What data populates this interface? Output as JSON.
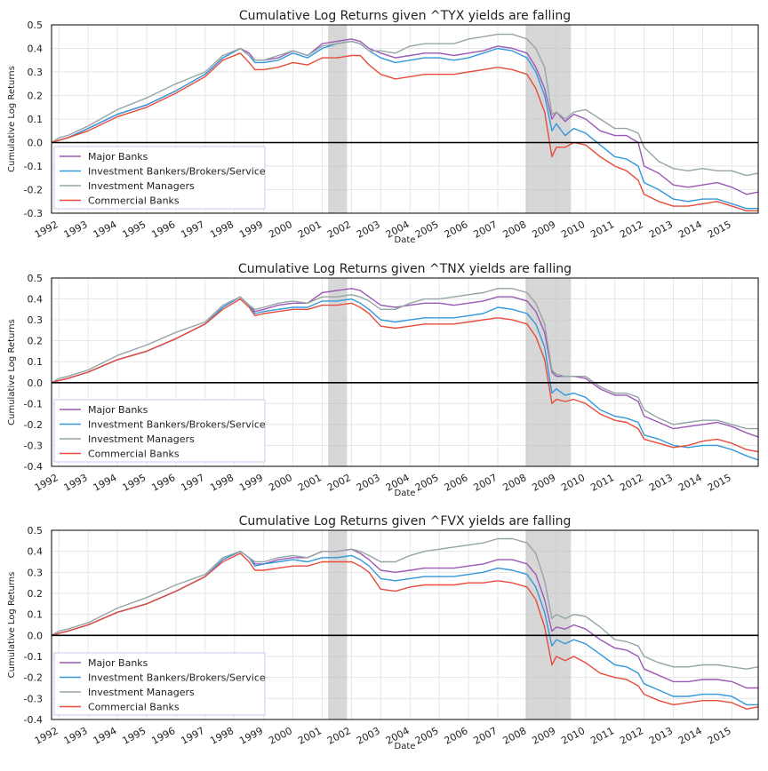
{
  "colors": {
    "major": "#9b59b6",
    "ibbs": "#3498db",
    "im": "#95a5a6",
    "cb": "#e74c3c",
    "recession": "#bdbdbd",
    "zero_line": "#000000",
    "grid": "#e6e6e6",
    "legend_border": "#c8c8f0"
  },
  "chart_data": [
    {
      "type": "line",
      "title": "Cumulative Log Returns given ^TYX yields are falling",
      "xlabel": "Date",
      "ylabel": "Cumulative Log Returns",
      "xlim": [
        1991.75,
        2015.9
      ],
      "ylim": [
        -0.3,
        0.5
      ],
      "yticks": [
        "-0.3",
        "-0.2",
        "-0.1",
        "0.0",
        "0.1",
        "0.2",
        "0.3",
        "0.4",
        "0.5"
      ],
      "xticks": [
        "1992",
        "1993",
        "1994",
        "1995",
        "1996",
        "1997",
        "1998",
        "1999",
        "2000",
        "2001",
        "2002",
        "2003",
        "2004",
        "2005",
        "2006",
        "2007",
        "2008",
        "2009",
        "2010",
        "2011",
        "2012",
        "2013",
        "2014",
        "2015"
      ],
      "grid": true,
      "legend": "lower-left",
      "zero_line": 0,
      "shaded_periods": [
        [
          2001.2,
          2001.85
        ],
        [
          2007.95,
          2009.5
        ]
      ],
      "x": [
        1991.75,
        1992.0,
        1992.3,
        1993.0,
        1994.0,
        1995.0,
        1996.0,
        1997.0,
        1997.6,
        1998.2,
        1998.5,
        1998.7,
        1999.0,
        1999.5,
        2000.0,
        2000.5,
        2001.0,
        2001.5,
        2002.0,
        2002.3,
        2002.6,
        2003.0,
        2003.5,
        2004.0,
        2004.5,
        2005.0,
        2005.5,
        2006.0,
        2006.5,
        2007.0,
        2007.5,
        2008.0,
        2008.3,
        2008.6,
        2008.85,
        2009.0,
        2009.3,
        2009.6,
        2010.0,
        2010.5,
        2011.0,
        2011.4,
        2011.8,
        2012.0,
        2012.5,
        2013.0,
        2013.5,
        2014.0,
        2014.5,
        2015.0,
        2015.5,
        2015.9
      ],
      "series": [
        {
          "name": "Major Banks",
          "color_key": "major",
          "values": [
            0.0,
            0.01,
            0.02,
            0.06,
            0.12,
            0.16,
            0.22,
            0.29,
            0.36,
            0.4,
            0.38,
            0.35,
            0.35,
            0.36,
            0.39,
            0.37,
            0.42,
            0.43,
            0.44,
            0.43,
            0.4,
            0.38,
            0.36,
            0.37,
            0.38,
            0.38,
            0.37,
            0.38,
            0.39,
            0.41,
            0.4,
            0.38,
            0.32,
            0.23,
            0.1,
            0.13,
            0.09,
            0.12,
            0.1,
            0.05,
            0.03,
            0.03,
            0.0,
            -0.1,
            -0.13,
            -0.18,
            -0.19,
            -0.18,
            -0.17,
            -0.19,
            -0.22,
            -0.21
          ]
        },
        {
          "name": "Investment Bankers/Brokers/Service",
          "color_key": "ibbs",
          "values": [
            0.0,
            0.01,
            0.02,
            0.06,
            0.12,
            0.16,
            0.22,
            0.29,
            0.36,
            0.4,
            0.37,
            0.34,
            0.34,
            0.35,
            0.38,
            0.36,
            0.4,
            0.42,
            0.43,
            0.42,
            0.39,
            0.36,
            0.34,
            0.35,
            0.36,
            0.36,
            0.35,
            0.36,
            0.38,
            0.4,
            0.39,
            0.36,
            0.3,
            0.2,
            0.05,
            0.08,
            0.03,
            0.06,
            0.04,
            -0.01,
            -0.06,
            -0.07,
            -0.1,
            -0.17,
            -0.2,
            -0.24,
            -0.25,
            -0.24,
            -0.24,
            -0.26,
            -0.28,
            -0.28
          ]
        },
        {
          "name": "Investment Managers",
          "color_key": "im",
          "values": [
            0.0,
            0.02,
            0.03,
            0.07,
            0.14,
            0.19,
            0.25,
            0.3,
            0.37,
            0.4,
            0.37,
            0.35,
            0.35,
            0.37,
            0.39,
            0.37,
            0.41,
            0.42,
            0.43,
            0.42,
            0.39,
            0.39,
            0.38,
            0.41,
            0.42,
            0.42,
            0.42,
            0.44,
            0.45,
            0.46,
            0.46,
            0.44,
            0.4,
            0.32,
            0.12,
            0.13,
            0.1,
            0.13,
            0.14,
            0.1,
            0.06,
            0.06,
            0.04,
            -0.02,
            -0.08,
            -0.11,
            -0.12,
            -0.11,
            -0.12,
            -0.12,
            -0.14,
            -0.13
          ]
        },
        {
          "name": "Commercial Banks",
          "color_key": "cb",
          "values": [
            0.0,
            0.01,
            0.02,
            0.05,
            0.11,
            0.15,
            0.21,
            0.28,
            0.35,
            0.38,
            0.34,
            0.31,
            0.31,
            0.32,
            0.34,
            0.33,
            0.36,
            0.36,
            0.37,
            0.37,
            0.33,
            0.29,
            0.27,
            0.28,
            0.29,
            0.29,
            0.29,
            0.3,
            0.31,
            0.32,
            0.31,
            0.29,
            0.23,
            0.13,
            -0.06,
            -0.02,
            -0.02,
            0.0,
            -0.01,
            -0.06,
            -0.1,
            -0.12,
            -0.16,
            -0.22,
            -0.25,
            -0.27,
            -0.27,
            -0.26,
            -0.25,
            -0.27,
            -0.29,
            -0.29
          ]
        }
      ]
    },
    {
      "type": "line",
      "title": "Cumulative Log Returns given ^TNX yields are falling",
      "xlabel": "Date",
      "ylabel": "Cumulative Log Returns",
      "xlim": [
        1991.75,
        2015.9
      ],
      "ylim": [
        -0.4,
        0.5
      ],
      "yticks": [
        "-0.4",
        "-0.3",
        "-0.2",
        "-0.1",
        "0.0",
        "0.1",
        "0.2",
        "0.3",
        "0.4",
        "0.5"
      ],
      "xticks": [
        "1992",
        "1993",
        "1994",
        "1995",
        "1996",
        "1997",
        "1998",
        "1999",
        "2000",
        "2001",
        "2002",
        "2003",
        "2004",
        "2005",
        "2006",
        "2007",
        "2008",
        "2009",
        "2010",
        "2011",
        "2012",
        "2013",
        "2014",
        "2015"
      ],
      "grid": true,
      "legend": "lower-left",
      "zero_line": 0,
      "shaded_periods": [
        [
          2001.2,
          2001.85
        ],
        [
          2007.95,
          2009.5
        ]
      ],
      "x": [
        1991.75,
        1992.0,
        1992.3,
        1993.0,
        1994.0,
        1995.0,
        1996.0,
        1997.0,
        1997.6,
        1998.2,
        1998.5,
        1998.7,
        1999.0,
        1999.5,
        2000.0,
        2000.5,
        2001.0,
        2001.5,
        2002.0,
        2002.3,
        2002.6,
        2003.0,
        2003.5,
        2004.0,
        2004.5,
        2005.0,
        2005.5,
        2006.0,
        2006.5,
        2007.0,
        2007.5,
        2008.0,
        2008.3,
        2008.6,
        2008.85,
        2009.0,
        2009.3,
        2009.6,
        2010.0,
        2010.5,
        2011.0,
        2011.4,
        2011.8,
        2012.0,
        2012.5,
        2013.0,
        2013.5,
        2014.0,
        2014.5,
        2015.0,
        2015.5,
        2015.9
      ],
      "series": [
        {
          "name": "Major Banks",
          "color_key": "major",
          "values": [
            0.0,
            0.01,
            0.02,
            0.05,
            0.11,
            0.15,
            0.21,
            0.28,
            0.36,
            0.41,
            0.37,
            0.34,
            0.35,
            0.37,
            0.38,
            0.38,
            0.43,
            0.44,
            0.45,
            0.44,
            0.41,
            0.37,
            0.36,
            0.37,
            0.38,
            0.38,
            0.37,
            0.38,
            0.39,
            0.41,
            0.41,
            0.39,
            0.34,
            0.24,
            0.05,
            0.03,
            0.03,
            0.03,
            0.02,
            -0.03,
            -0.06,
            -0.06,
            -0.09,
            -0.16,
            -0.19,
            -0.22,
            -0.21,
            -0.2,
            -0.19,
            -0.21,
            -0.24,
            -0.26
          ]
        },
        {
          "name": "Investment Bankers/Brokers/Service",
          "color_key": "ibbs",
          "values": [
            0.0,
            0.01,
            0.02,
            0.05,
            0.11,
            0.15,
            0.21,
            0.28,
            0.36,
            0.41,
            0.37,
            0.33,
            0.34,
            0.35,
            0.36,
            0.36,
            0.39,
            0.39,
            0.4,
            0.38,
            0.35,
            0.3,
            0.29,
            0.3,
            0.31,
            0.31,
            0.31,
            0.32,
            0.33,
            0.36,
            0.35,
            0.33,
            0.28,
            0.17,
            -0.05,
            -0.03,
            -0.06,
            -0.05,
            -0.07,
            -0.13,
            -0.16,
            -0.17,
            -0.19,
            -0.25,
            -0.27,
            -0.3,
            -0.31,
            -0.3,
            -0.3,
            -0.32,
            -0.35,
            -0.37
          ]
        },
        {
          "name": "Investment Managers",
          "color_key": "im",
          "values": [
            0.0,
            0.02,
            0.03,
            0.06,
            0.13,
            0.18,
            0.24,
            0.29,
            0.37,
            0.41,
            0.37,
            0.35,
            0.36,
            0.38,
            0.39,
            0.38,
            0.41,
            0.41,
            0.42,
            0.41,
            0.39,
            0.35,
            0.35,
            0.38,
            0.4,
            0.4,
            0.41,
            0.42,
            0.43,
            0.45,
            0.45,
            0.43,
            0.38,
            0.28,
            0.06,
            0.04,
            0.03,
            0.03,
            0.03,
            -0.02,
            -0.05,
            -0.05,
            -0.07,
            -0.13,
            -0.17,
            -0.2,
            -0.19,
            -0.18,
            -0.18,
            -0.2,
            -0.22,
            -0.22
          ]
        },
        {
          "name": "Commercial Banks",
          "color_key": "cb",
          "values": [
            0.0,
            0.01,
            0.02,
            0.05,
            0.11,
            0.15,
            0.21,
            0.28,
            0.35,
            0.4,
            0.36,
            0.32,
            0.33,
            0.34,
            0.35,
            0.35,
            0.37,
            0.37,
            0.38,
            0.36,
            0.33,
            0.27,
            0.26,
            0.27,
            0.28,
            0.28,
            0.28,
            0.29,
            0.3,
            0.31,
            0.3,
            0.28,
            0.22,
            0.11,
            -0.1,
            -0.08,
            -0.09,
            -0.08,
            -0.1,
            -0.15,
            -0.18,
            -0.19,
            -0.22,
            -0.27,
            -0.29,
            -0.31,
            -0.3,
            -0.28,
            -0.27,
            -0.29,
            -0.32,
            -0.33
          ]
        }
      ]
    },
    {
      "type": "line",
      "title": "Cumulative Log Returns given ^FVX yields are falling",
      "xlabel": "Date",
      "ylabel": "Cumulative Log Returns",
      "xlim": [
        1991.75,
        2015.9
      ],
      "ylim": [
        -0.4,
        0.5
      ],
      "yticks": [
        "-0.4",
        "-0.3",
        "-0.2",
        "-0.1",
        "0.0",
        "0.1",
        "0.2",
        "0.3",
        "0.4",
        "0.5"
      ],
      "xticks": [
        "1992",
        "1993",
        "1994",
        "1995",
        "1996",
        "1997",
        "1998",
        "1999",
        "2000",
        "2001",
        "2002",
        "2003",
        "2004",
        "2005",
        "2006",
        "2007",
        "2008",
        "2009",
        "2010",
        "2011",
        "2012",
        "2013",
        "2014",
        "2015"
      ],
      "grid": true,
      "legend": "lower-left",
      "zero_line": 0,
      "shaded_periods": [
        [
          2001.2,
          2001.85
        ],
        [
          2007.95,
          2009.5
        ]
      ],
      "x": [
        1991.75,
        1992.0,
        1992.3,
        1993.0,
        1994.0,
        1995.0,
        1996.0,
        1997.0,
        1997.6,
        1998.2,
        1998.5,
        1998.7,
        1999.0,
        1999.5,
        2000.0,
        2000.5,
        2001.0,
        2001.5,
        2002.0,
        2002.3,
        2002.6,
        2003.0,
        2003.5,
        2004.0,
        2004.5,
        2005.0,
        2005.5,
        2006.0,
        2006.5,
        2007.0,
        2007.5,
        2008.0,
        2008.3,
        2008.6,
        2008.85,
        2009.0,
        2009.3,
        2009.6,
        2010.0,
        2010.5,
        2011.0,
        2011.4,
        2011.8,
        2012.0,
        2012.5,
        2013.0,
        2013.5,
        2014.0,
        2014.5,
        2015.0,
        2015.5,
        2015.9
      ],
      "series": [
        {
          "name": "Major Banks",
          "color_key": "major",
          "values": [
            0.0,
            0.01,
            0.02,
            0.05,
            0.11,
            0.15,
            0.21,
            0.28,
            0.36,
            0.4,
            0.37,
            0.34,
            0.34,
            0.36,
            0.37,
            0.37,
            0.4,
            0.4,
            0.41,
            0.39,
            0.36,
            0.31,
            0.3,
            0.31,
            0.32,
            0.32,
            0.32,
            0.33,
            0.34,
            0.36,
            0.36,
            0.34,
            0.29,
            0.17,
            0.02,
            0.04,
            0.03,
            0.05,
            0.03,
            -0.02,
            -0.06,
            -0.07,
            -0.1,
            -0.16,
            -0.19,
            -0.22,
            -0.22,
            -0.21,
            -0.21,
            -0.22,
            -0.25,
            -0.25
          ]
        },
        {
          "name": "Investment Bankers/Brokers/Service",
          "color_key": "ibbs",
          "values": [
            0.0,
            0.01,
            0.02,
            0.05,
            0.11,
            0.15,
            0.21,
            0.28,
            0.36,
            0.4,
            0.37,
            0.33,
            0.34,
            0.35,
            0.36,
            0.35,
            0.37,
            0.37,
            0.38,
            0.36,
            0.33,
            0.27,
            0.26,
            0.27,
            0.28,
            0.28,
            0.28,
            0.29,
            0.3,
            0.32,
            0.31,
            0.29,
            0.23,
            0.11,
            -0.05,
            -0.02,
            -0.04,
            -0.02,
            -0.04,
            -0.09,
            -0.14,
            -0.15,
            -0.18,
            -0.23,
            -0.26,
            -0.29,
            -0.29,
            -0.28,
            -0.28,
            -0.29,
            -0.33,
            -0.33
          ]
        },
        {
          "name": "Investment Managers",
          "color_key": "im",
          "values": [
            0.0,
            0.02,
            0.03,
            0.06,
            0.13,
            0.18,
            0.24,
            0.29,
            0.37,
            0.4,
            0.37,
            0.35,
            0.35,
            0.37,
            0.38,
            0.37,
            0.4,
            0.4,
            0.41,
            0.4,
            0.38,
            0.35,
            0.35,
            0.38,
            0.4,
            0.41,
            0.42,
            0.43,
            0.44,
            0.46,
            0.46,
            0.44,
            0.39,
            0.26,
            0.08,
            0.1,
            0.08,
            0.1,
            0.09,
            0.04,
            -0.02,
            -0.03,
            -0.05,
            -0.1,
            -0.13,
            -0.15,
            -0.15,
            -0.14,
            -0.14,
            -0.15,
            -0.16,
            -0.15
          ]
        },
        {
          "name": "Commercial Banks",
          "color_key": "cb",
          "values": [
            0.0,
            0.01,
            0.02,
            0.05,
            0.11,
            0.15,
            0.21,
            0.28,
            0.35,
            0.39,
            0.35,
            0.31,
            0.31,
            0.32,
            0.33,
            0.33,
            0.35,
            0.35,
            0.35,
            0.33,
            0.3,
            0.22,
            0.21,
            0.23,
            0.24,
            0.24,
            0.24,
            0.25,
            0.25,
            0.26,
            0.25,
            0.23,
            0.17,
            0.04,
            -0.14,
            -0.1,
            -0.12,
            -0.1,
            -0.13,
            -0.18,
            -0.2,
            -0.21,
            -0.24,
            -0.28,
            -0.31,
            -0.33,
            -0.32,
            -0.31,
            -0.31,
            -0.32,
            -0.35,
            -0.34
          ]
        }
      ]
    }
  ]
}
